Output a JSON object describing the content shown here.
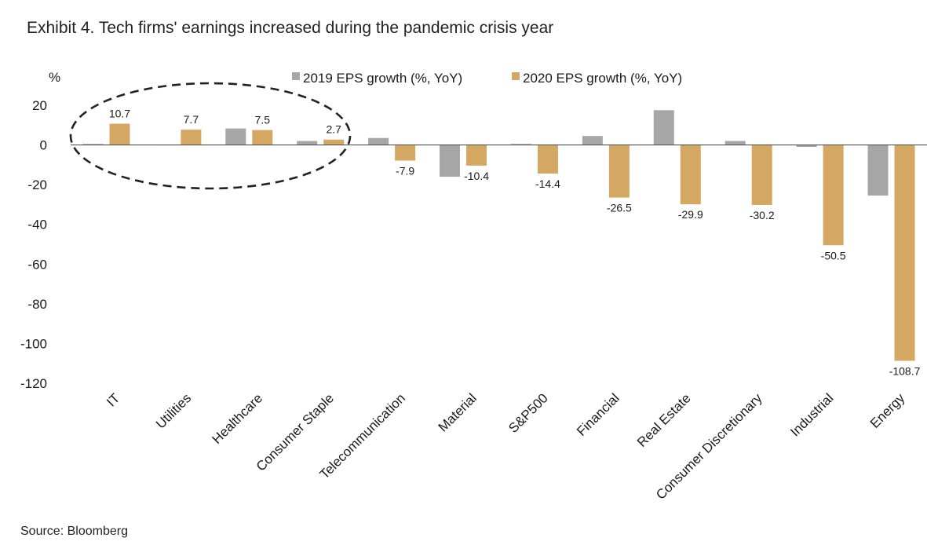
{
  "chart_data": {
    "type": "bar",
    "title": "Exhibit 4. Tech firms' earnings increased during the pandemic crisis year",
    "ylabel": "%",
    "ylim": [
      -120,
      20
    ],
    "yticks": [
      20,
      0,
      -20,
      -40,
      -60,
      -80,
      -100,
      -120
    ],
    "categories": [
      "IT",
      "Utilities",
      "Healthcare",
      "Consumer Staple",
      "Telecommunication",
      "Material",
      "S&P500",
      "Financial",
      "Real Estate",
      "Consumer Discretionary",
      "Industrial",
      "Energy"
    ],
    "series": [
      {
        "name": "2019 EPS growth (%, YoY)",
        "color": "#a6a6a6",
        "values": [
          0.5,
          0,
          8.3,
          2,
          3.5,
          -16,
          0.5,
          4.5,
          17.5,
          2,
          -1,
          -25.5
        ]
      },
      {
        "name": "2020 EPS growth (%, YoY)",
        "color": "#d4a862",
        "values": [
          10.7,
          7.7,
          7.5,
          2.7,
          -7.9,
          -10.4,
          -14.4,
          -26.5,
          -29.9,
          -30.2,
          -50.5,
          -108.7
        ],
        "labels": [
          "10.7",
          "7.7",
          "7.5",
          "2.7",
          "-7.9",
          "-10.4",
          "-14.4",
          "-26.5",
          "-29.9",
          "-30.2",
          "-50.5",
          "-108.7"
        ]
      }
    ],
    "annotation": "dashed ellipse around IT, Utilities, Healthcare, Consumer Staple",
    "source": "Source: Bloomberg"
  }
}
